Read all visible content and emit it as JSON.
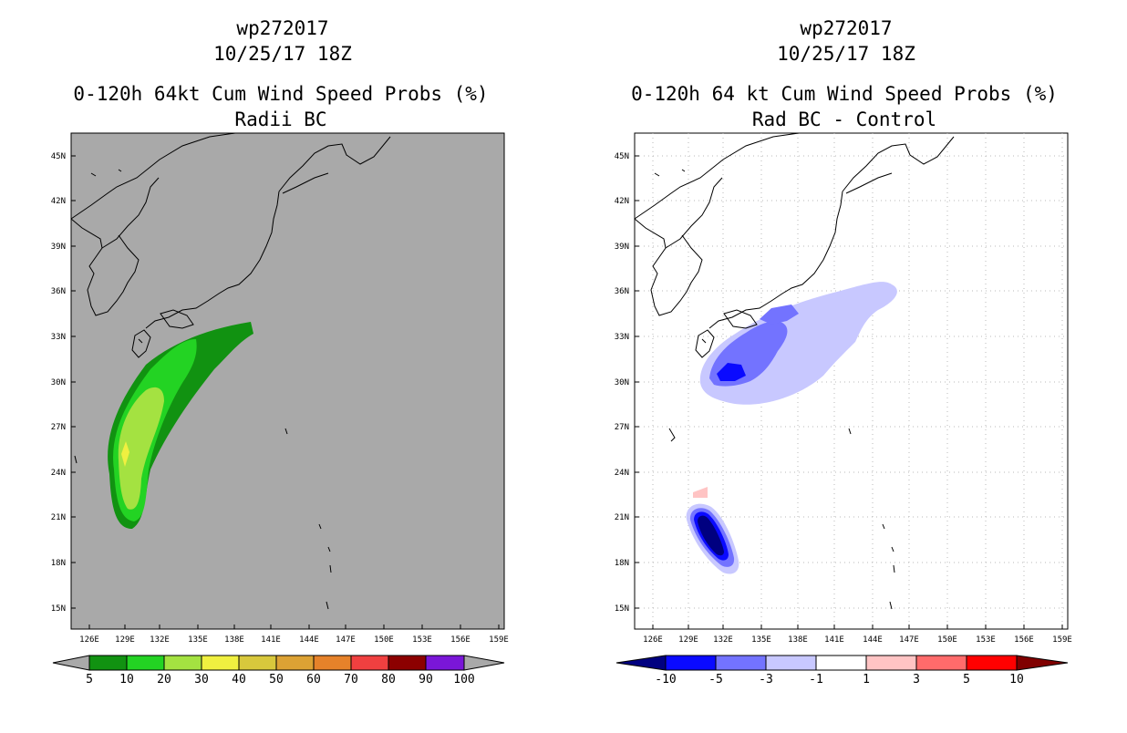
{
  "left_panel": {
    "title_id": "wp272017",
    "title_date": "10/25/17 18Z",
    "title_main": "0-120h 64kt Cum Wind Speed Probs (%)",
    "title_sub": "Radii BC",
    "colorbar_labels": [
      "5",
      "10",
      "20",
      "30",
      "40",
      "50",
      "60",
      "70",
      "80",
      "90",
      "100"
    ],
    "colorbar_colors": [
      "#119211",
      "#23d323",
      "#a4e241",
      "#f0f040",
      "#d8c83c",
      "#dca234",
      "#e6822a",
      "#f04040",
      "#8c0000",
      "#7a16d8"
    ],
    "background_color": "#a9a9a9"
  },
  "right_panel": {
    "title_id": "wp272017",
    "title_date": "10/25/17 18Z",
    "title_main": "0-120h 64 kt Cum Wind Speed Probs (%)",
    "title_sub": "Rad BC - Control",
    "colorbar_labels": [
      "-10",
      "-5",
      "-3",
      "-1",
      "1",
      "3",
      "5",
      "10"
    ],
    "colorbar_colors": [
      "#000080",
      "#0a0aff",
      "#7373ff",
      "#c8c8ff",
      "#ffffff",
      "#ffc4c4",
      "#ff6b6b",
      "#ff0000",
      "#800000"
    ]
  },
  "axes": {
    "lat_labels": [
      "45N",
      "42N",
      "39N",
      "36N",
      "33N",
      "30N",
      "27N",
      "24N",
      "21N",
      "18N",
      "15N"
    ],
    "lon_labels": [
      "126E",
      "129E",
      "132E",
      "135E",
      "138E",
      "141E",
      "144E",
      "147E",
      "150E",
      "153E",
      "156E",
      "159E"
    ]
  }
}
